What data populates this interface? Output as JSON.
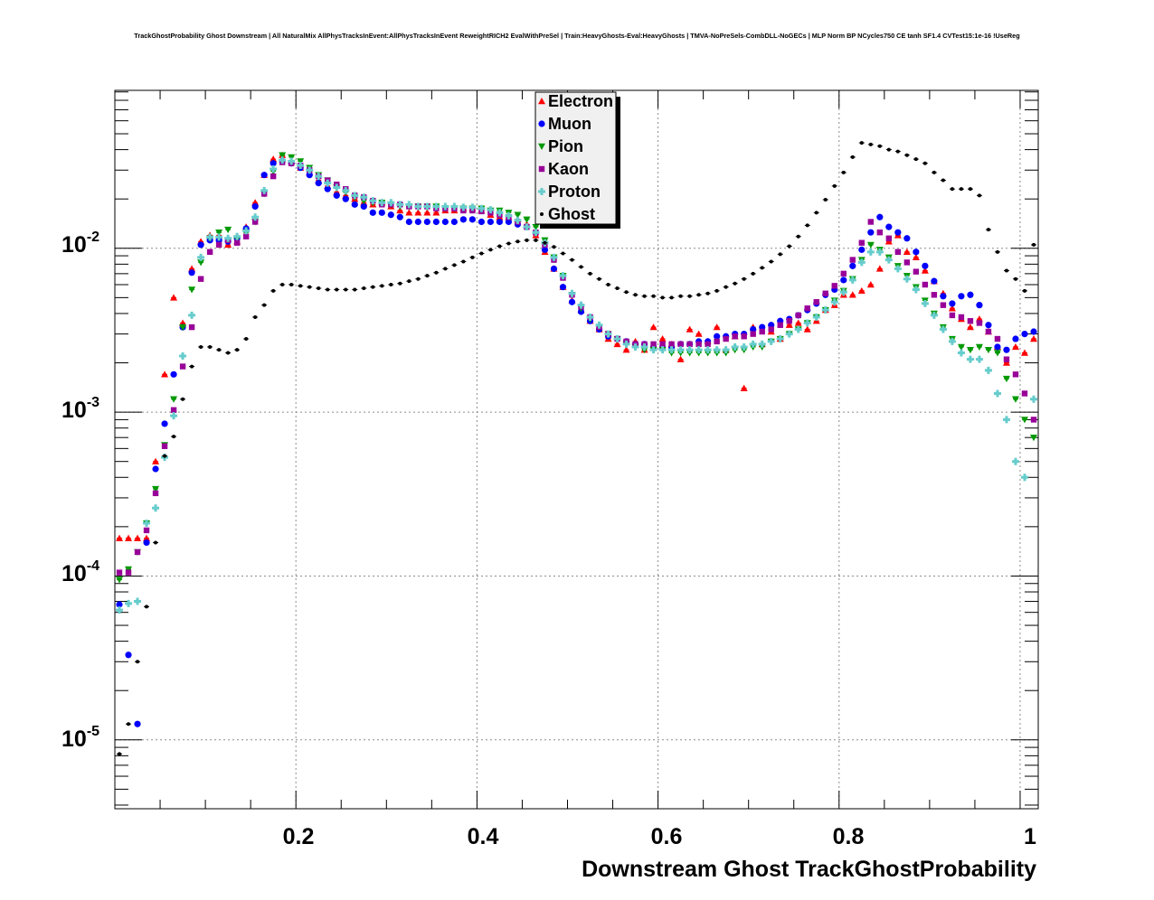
{
  "chart_data": {
    "type": "scatter",
    "title": "TrackGhostProbability Ghost Downstream | All NaturalMix AllPhysTracksInEvent:AllPhysTracksInEvent ReweightRICH2 EvalWithPreSel | Train:HeavyGhosts-Eval:HeavyGhosts | TMVA-NoPreSels-CombDLL-NoGECs | MLP Norm BP NCycles750 CE tanh SF1.4 CVTest15:1e-16 !UseReg",
    "xlabel": "Downstream Ghost TrackGhostProbability",
    "ylabel": "",
    "xlim": [
      0,
      1.02
    ],
    "ylim": [
      3.8e-06,
      0.092
    ],
    "yscale": "log",
    "grid": true,
    "legend_position": "top-center",
    "x_tick_labels": [
      "0.2",
      "0.4",
      "0.6",
      "0.8",
      "1"
    ],
    "y_tick_labels": [
      {
        "base": "10",
        "exp": "-2"
      },
      {
        "base": "10",
        "exp": "-3"
      },
      {
        "base": "10",
        "exp": "-4"
      },
      {
        "base": "10",
        "exp": "-5"
      }
    ],
    "x": [
      0.005,
      0.015,
      0.025,
      0.035,
      0.045,
      0.055,
      0.065,
      0.075,
      0.085,
      0.095,
      0.105,
      0.115,
      0.125,
      0.135,
      0.145,
      0.155,
      0.165,
      0.175,
      0.185,
      0.195,
      0.205,
      0.215,
      0.225,
      0.235,
      0.245,
      0.255,
      0.265,
      0.275,
      0.285,
      0.295,
      0.305,
      0.315,
      0.325,
      0.335,
      0.345,
      0.355,
      0.365,
      0.375,
      0.385,
      0.395,
      0.405,
      0.415,
      0.425,
      0.435,
      0.445,
      0.455,
      0.465,
      0.475,
      0.485,
      0.495,
      0.505,
      0.515,
      0.525,
      0.535,
      0.545,
      0.555,
      0.565,
      0.575,
      0.585,
      0.595,
      0.605,
      0.615,
      0.625,
      0.635,
      0.645,
      0.655,
      0.665,
      0.675,
      0.685,
      0.695,
      0.705,
      0.715,
      0.725,
      0.735,
      0.745,
      0.755,
      0.765,
      0.775,
      0.785,
      0.795,
      0.805,
      0.815,
      0.825,
      0.835,
      0.845,
      0.855,
      0.865,
      0.875,
      0.885,
      0.895,
      0.905,
      0.915,
      0.925,
      0.935,
      0.945,
      0.955,
      0.965,
      0.975,
      0.985,
      0.995,
      1.005,
      1.015
    ],
    "series": [
      {
        "name": "Electron",
        "color": "#ff0000",
        "marker": "triangle-up",
        "values": [
          0.00017,
          0.00017,
          0.00017,
          0.00017,
          0.0005,
          0.0017,
          0.005,
          0.0035,
          0.0075,
          0.011,
          0.012,
          0.012,
          0.0105,
          0.011,
          0.0135,
          0.019,
          0.028,
          0.035,
          0.037,
          0.034,
          0.031,
          0.029,
          0.026,
          0.024,
          0.022,
          0.021,
          0.02,
          0.019,
          0.0185,
          0.019,
          0.018,
          0.017,
          0.0165,
          0.0165,
          0.0165,
          0.0165,
          0.017,
          0.017,
          0.0175,
          0.0175,
          0.017,
          0.016,
          0.0155,
          0.0155,
          0.015,
          0.014,
          0.012,
          0.0095,
          0.0075,
          0.0058,
          0.0048,
          0.0042,
          0.0036,
          0.0032,
          0.0028,
          0.0026,
          0.0024,
          0.0027,
          0.0024,
          0.0033,
          0.0028,
          0.0026,
          0.0021,
          0.0032,
          0.003,
          0.0027,
          0.0033,
          0.0024,
          0.0029,
          0.0014,
          0.0033,
          0.0026,
          0.0031,
          0.0028,
          0.0034,
          0.0035,
          0.0032,
          0.0036,
          0.0042,
          0.0045,
          0.0052,
          0.0052,
          0.0055,
          0.006,
          0.0075,
          0.011,
          0.012,
          0.0095,
          0.0088,
          0.0073,
          0.0063,
          0.0053,
          0.0043,
          0.0037,
          0.0033,
          0.0037,
          0.0031,
          0.0025,
          0.002,
          0.0025,
          0.0023,
          0.0028
        ]
      },
      {
        "name": "Muon",
        "color": "#0000ff",
        "marker": "circle",
        "values": [
          6.7e-05,
          3.3e-05,
          1.25e-05,
          0.00016,
          0.00045,
          0.00085,
          0.0017,
          0.0033,
          0.0071,
          0.0105,
          0.0112,
          0.0112,
          0.011,
          0.0115,
          0.0132,
          0.018,
          0.028,
          0.033,
          0.034,
          0.033,
          0.031,
          0.028,
          0.025,
          0.023,
          0.021,
          0.02,
          0.0185,
          0.018,
          0.0165,
          0.0165,
          0.016,
          0.0155,
          0.0145,
          0.0145,
          0.0145,
          0.0145,
          0.0145,
          0.0145,
          0.015,
          0.015,
          0.0145,
          0.0145,
          0.0145,
          0.0145,
          0.014,
          0.0135,
          0.0125,
          0.0098,
          0.0075,
          0.0058,
          0.0047,
          0.0041,
          0.0036,
          0.0032,
          0.0029,
          0.0028,
          0.0027,
          0.0026,
          0.0026,
          0.0025,
          0.0025,
          0.0025,
          0.0026,
          0.0026,
          0.0027,
          0.0027,
          0.0029,
          0.0029,
          0.003,
          0.003,
          0.0032,
          0.0033,
          0.0034,
          0.0036,
          0.0037,
          0.0039,
          0.0042,
          0.0046,
          0.0052,
          0.0056,
          0.0064,
          0.0078,
          0.0098,
          0.0125,
          0.0155,
          0.0135,
          0.0125,
          0.0115,
          0.0095,
          0.0078,
          0.0063,
          0.0051,
          0.0046,
          0.0051,
          0.0052,
          0.0045,
          0.0034,
          0.0025,
          0.0024,
          0.0028,
          0.003,
          0.0031
        ]
      },
      {
        "name": "Pion",
        "color": "#009900",
        "marker": "triangle-down",
        "values": [
          9.5e-05,
          0.00011,
          0.00014,
          0.00021,
          0.00034,
          0.00063,
          0.0012,
          0.0033,
          0.0056,
          0.0082,
          0.0115,
          0.0125,
          0.013,
          0.0115,
          0.0125,
          0.0145,
          0.0215,
          0.0295,
          0.037,
          0.036,
          0.034,
          0.031,
          0.028,
          0.026,
          0.0235,
          0.022,
          0.0205,
          0.0195,
          0.019,
          0.019,
          0.0185,
          0.018,
          0.018,
          0.018,
          0.018,
          0.018,
          0.0175,
          0.0175,
          0.0175,
          0.0175,
          0.0175,
          0.017,
          0.017,
          0.0165,
          0.016,
          0.015,
          0.0135,
          0.0112,
          0.0088,
          0.0068,
          0.0052,
          0.0043,
          0.0037,
          0.0033,
          0.003,
          0.0028,
          0.0026,
          0.0025,
          0.0024,
          0.0024,
          0.0024,
          0.0023,
          0.0023,
          0.0023,
          0.0023,
          0.0023,
          0.0023,
          0.0023,
          0.0024,
          0.0024,
          0.0025,
          0.0025,
          0.0027,
          0.0028,
          0.003,
          0.0032,
          0.0035,
          0.0038,
          0.0042,
          0.0048,
          0.0055,
          0.0065,
          0.0085,
          0.0105,
          0.0098,
          0.0088,
          0.0078,
          0.0068,
          0.0058,
          0.0048,
          0.004,
          0.0033,
          0.0028,
          0.0025,
          0.0024,
          0.0025,
          0.0024,
          0.0023,
          0.0016,
          0.0012,
          0.0009,
          0.0007
        ]
      },
      {
        "name": "Kaon",
        "color": "#990099",
        "marker": "square",
        "values": [
          0.000105,
          0.000105,
          0.00014,
          0.00019,
          0.00032,
          0.00062,
          0.00103,
          0.0019,
          0.0033,
          0.0065,
          0.0095,
          0.0105,
          0.0112,
          0.0108,
          0.0118,
          0.0145,
          0.0215,
          0.0275,
          0.0335,
          0.033,
          0.032,
          0.03,
          0.0275,
          0.026,
          0.0245,
          0.023,
          0.021,
          0.0205,
          0.0195,
          0.0185,
          0.0185,
          0.0185,
          0.018,
          0.018,
          0.018,
          0.0175,
          0.0175,
          0.0175,
          0.017,
          0.017,
          0.0168,
          0.0165,
          0.016,
          0.0155,
          0.0145,
          0.0135,
          0.0125,
          0.0105,
          0.0085,
          0.0066,
          0.0052,
          0.0044,
          0.0038,
          0.0033,
          0.003,
          0.0028,
          0.0027,
          0.0026,
          0.0026,
          0.0026,
          0.0026,
          0.0026,
          0.0026,
          0.0026,
          0.0026,
          0.0026,
          0.0027,
          0.0028,
          0.0029,
          0.0029,
          0.003,
          0.0031,
          0.0032,
          0.0034,
          0.0036,
          0.0039,
          0.0043,
          0.0047,
          0.0053,
          0.0059,
          0.007,
          0.0085,
          0.0108,
          0.0145,
          0.0125,
          0.0115,
          0.0095,
          0.0082,
          0.0072,
          0.006,
          0.0052,
          0.0045,
          0.0039,
          0.0038,
          0.0036,
          0.0035,
          0.0031,
          0.0028,
          0.0021,
          0.0017,
          0.0013,
          0.0009
        ]
      },
      {
        "name": "Proton",
        "color": "#66cccc",
        "marker": "cross",
        "values": [
          6.2e-05,
          6.8e-05,
          7e-05,
          0.00021,
          0.00026,
          0.00053,
          0.00095,
          0.0022,
          0.0039,
          0.0088,
          0.0117,
          0.0117,
          0.0115,
          0.0118,
          0.0128,
          0.0155,
          0.0225,
          0.0305,
          0.0345,
          0.034,
          0.032,
          0.03,
          0.0275,
          0.025,
          0.0235,
          0.0225,
          0.021,
          0.0205,
          0.0195,
          0.019,
          0.019,
          0.0185,
          0.0185,
          0.018,
          0.018,
          0.018,
          0.018,
          0.018,
          0.0178,
          0.0178,
          0.0175,
          0.0172,
          0.0165,
          0.0158,
          0.0148,
          0.0135,
          0.0125,
          0.0108,
          0.0088,
          0.0068,
          0.0053,
          0.0045,
          0.0038,
          0.0034,
          0.003,
          0.0028,
          0.0026,
          0.0025,
          0.0025,
          0.0024,
          0.0024,
          0.0024,
          0.0024,
          0.0024,
          0.0024,
          0.0024,
          0.0024,
          0.0024,
          0.0025,
          0.0025,
          0.0026,
          0.0026,
          0.0027,
          0.0028,
          0.003,
          0.0032,
          0.0035,
          0.0038,
          0.0042,
          0.0047,
          0.0054,
          0.0064,
          0.0082,
          0.0095,
          0.0095,
          0.0085,
          0.0075,
          0.0065,
          0.0056,
          0.0046,
          0.0039,
          0.0032,
          0.0027,
          0.0023,
          0.0021,
          0.0021,
          0.0018,
          0.0013,
          0.0009,
          0.0005,
          0.0004,
          0.0012
        ]
      },
      {
        "name": "Ghost",
        "color": "#000000",
        "marker": "point",
        "values": [
          8.2e-06,
          1.25e-05,
          3e-05,
          6.5e-05,
          0.00016,
          0.00054,
          0.00071,
          0.0012,
          0.0019,
          0.0025,
          0.0025,
          0.0024,
          0.0023,
          0.0024,
          0.0028,
          0.0038,
          0.0045,
          0.0055,
          0.006,
          0.006,
          0.0059,
          0.0058,
          0.0057,
          0.0056,
          0.0056,
          0.0056,
          0.0056,
          0.0057,
          0.0058,
          0.0059,
          0.006,
          0.0061,
          0.0063,
          0.0065,
          0.0068,
          0.0071,
          0.0075,
          0.0079,
          0.0083,
          0.0088,
          0.0093,
          0.0098,
          0.0103,
          0.0107,
          0.011,
          0.0112,
          0.0112,
          0.0108,
          0.0102,
          0.0093,
          0.0085,
          0.0077,
          0.007,
          0.0065,
          0.006,
          0.0057,
          0.0054,
          0.0052,
          0.0051,
          0.0051,
          0.005,
          0.005,
          0.0051,
          0.0051,
          0.0052,
          0.0053,
          0.0055,
          0.0058,
          0.0061,
          0.0065,
          0.007,
          0.0076,
          0.0083,
          0.0092,
          0.0103,
          0.0118,
          0.0138,
          0.0165,
          0.0198,
          0.024,
          0.029,
          0.036,
          0.044,
          0.043,
          0.042,
          0.04,
          0.039,
          0.037,
          0.035,
          0.033,
          0.029,
          0.026,
          0.023,
          0.023,
          0.023,
          0.021,
          0.013,
          0.0095,
          0.0073,
          0.0065,
          0.0055,
          0.0105
        ]
      }
    ]
  }
}
